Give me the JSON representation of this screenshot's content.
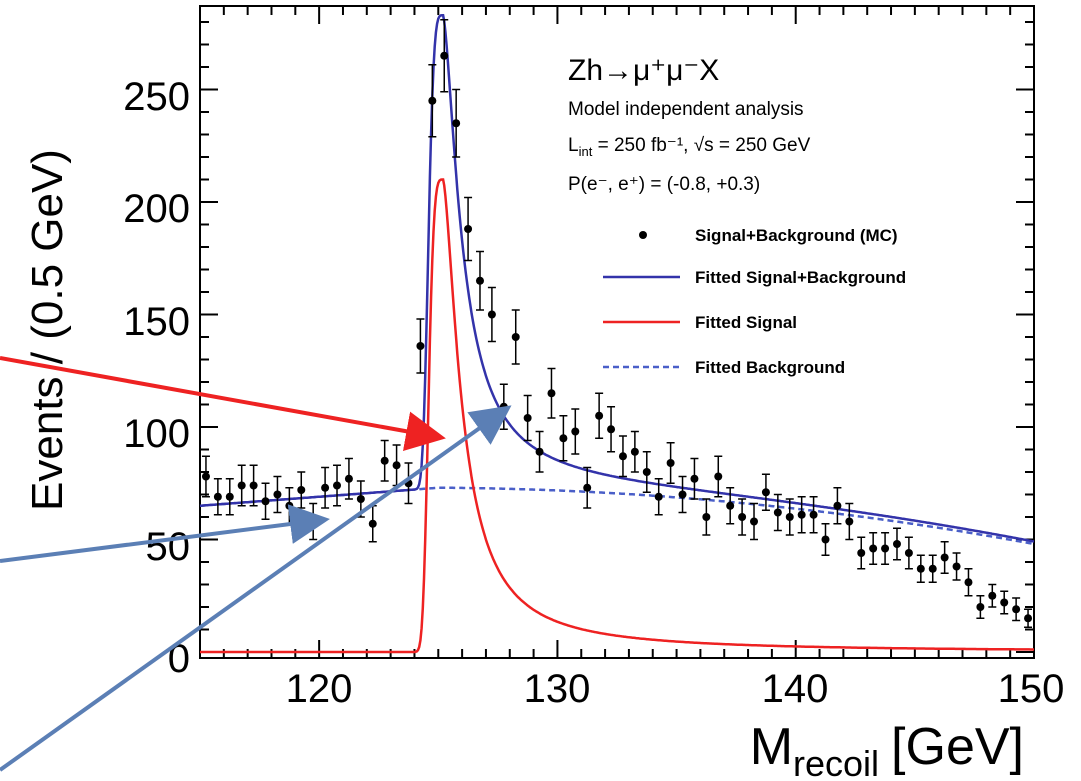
{
  "chart_data": {
    "type": "scatter",
    "xlabel": "M",
    "xlabel_sub": "recoil",
    "xlabel_unit": "[GeV]",
    "ylabel": "Events / (0.5 GeV)",
    "xlim": [
      115,
      150
    ],
    "ylim": [
      0,
      290
    ],
    "x_ticks": [
      "120",
      "130",
      "140",
      "150"
    ],
    "y_ticks": [
      "0",
      "50",
      "100",
      "150",
      "200",
      "250"
    ],
    "annotations": {
      "process": "Zh→μ⁺μ⁻X",
      "line1": "Model independent analysis",
      "line2": "L",
      "line2_sub": "int",
      "line2_rest": " = 250 fb⁻¹, √s = 250 GeV",
      "line3": "P(e⁻, e⁺) = (-0.8, +0.3)"
    },
    "legend": [
      {
        "label": "Signal+Background (MC)",
        "style": "marker",
        "color": "#000000"
      },
      {
        "label": "Fitted Signal+Background",
        "style": "solid",
        "color": "#3333aa"
      },
      {
        "label": "Fitted Signal",
        "style": "solid",
        "color": "#ee2222"
      },
      {
        "label": "Fitted Background",
        "style": "dashed",
        "color": "#4a5fc8"
      }
    ],
    "points": [
      {
        "x": 115.25,
        "y": 78,
        "e": 9
      },
      {
        "x": 115.75,
        "y": 69,
        "e": 8
      },
      {
        "x": 116.25,
        "y": 69,
        "e": 8
      },
      {
        "x": 116.75,
        "y": 74,
        "e": 9
      },
      {
        "x": 117.25,
        "y": 74,
        "e": 9
      },
      {
        "x": 117.75,
        "y": 67,
        "e": 8
      },
      {
        "x": 118.25,
        "y": 70,
        "e": 8
      },
      {
        "x": 118.75,
        "y": 65,
        "e": 8
      },
      {
        "x": 119.25,
        "y": 72,
        "e": 8
      },
      {
        "x": 119.75,
        "y": 58,
        "e": 8
      },
      {
        "x": 120.25,
        "y": 73,
        "e": 9
      },
      {
        "x": 120.75,
        "y": 74,
        "e": 9
      },
      {
        "x": 121.25,
        "y": 77,
        "e": 9
      },
      {
        "x": 121.75,
        "y": 68,
        "e": 8
      },
      {
        "x": 122.25,
        "y": 57,
        "e": 8
      },
      {
        "x": 122.75,
        "y": 85,
        "e": 9
      },
      {
        "x": 123.25,
        "y": 83,
        "e": 9
      },
      {
        "x": 123.75,
        "y": 75,
        "e": 9
      },
      {
        "x": 124.25,
        "y": 136,
        "e": 12
      },
      {
        "x": 124.75,
        "y": 245,
        "e": 16
      },
      {
        "x": 125.25,
        "y": 265,
        "e": 16
      },
      {
        "x": 125.75,
        "y": 235,
        "e": 15
      },
      {
        "x": 126.25,
        "y": 188,
        "e": 14
      },
      {
        "x": 126.75,
        "y": 165,
        "e": 13
      },
      {
        "x": 127.25,
        "y": 150,
        "e": 12
      },
      {
        "x": 127.75,
        "y": 109,
        "e": 10
      },
      {
        "x": 128.25,
        "y": 140,
        "e": 12
      },
      {
        "x": 128.75,
        "y": 104,
        "e": 10
      },
      {
        "x": 129.25,
        "y": 89,
        "e": 9
      },
      {
        "x": 129.75,
        "y": 115,
        "e": 11
      },
      {
        "x": 130.25,
        "y": 95,
        "e": 10
      },
      {
        "x": 130.75,
        "y": 98,
        "e": 10
      },
      {
        "x": 131.25,
        "y": 73,
        "e": 9
      },
      {
        "x": 131.75,
        "y": 105,
        "e": 10
      },
      {
        "x": 132.25,
        "y": 99,
        "e": 10
      },
      {
        "x": 132.75,
        "y": 87,
        "e": 9
      },
      {
        "x": 133.25,
        "y": 89,
        "e": 9
      },
      {
        "x": 133.75,
        "y": 80,
        "e": 9
      },
      {
        "x": 134.25,
        "y": 69,
        "e": 8
      },
      {
        "x": 134.75,
        "y": 84,
        "e": 9
      },
      {
        "x": 135.25,
        "y": 70,
        "e": 8
      },
      {
        "x": 135.75,
        "y": 77,
        "e": 9
      },
      {
        "x": 136.25,
        "y": 60,
        "e": 8
      },
      {
        "x": 136.75,
        "y": 78,
        "e": 9
      },
      {
        "x": 137.25,
        "y": 65,
        "e": 8
      },
      {
        "x": 137.75,
        "y": 60,
        "e": 8
      },
      {
        "x": 138.25,
        "y": 58,
        "e": 8
      },
      {
        "x": 138.75,
        "y": 71,
        "e": 8
      },
      {
        "x": 139.25,
        "y": 62,
        "e": 8
      },
      {
        "x": 139.75,
        "y": 60,
        "e": 8
      },
      {
        "x": 140.25,
        "y": 61,
        "e": 8
      },
      {
        "x": 140.75,
        "y": 61,
        "e": 8
      },
      {
        "x": 141.25,
        "y": 50,
        "e": 7
      },
      {
        "x": 141.75,
        "y": 65,
        "e": 8
      },
      {
        "x": 142.25,
        "y": 58,
        "e": 8
      },
      {
        "x": 142.75,
        "y": 44,
        "e": 7
      },
      {
        "x": 143.25,
        "y": 46,
        "e": 7
      },
      {
        "x": 143.75,
        "y": 46,
        "e": 7
      },
      {
        "x": 144.25,
        "y": 48,
        "e": 7
      },
      {
        "x": 144.75,
        "y": 44,
        "e": 7
      },
      {
        "x": 145.25,
        "y": 37,
        "e": 6
      },
      {
        "x": 145.75,
        "y": 37,
        "e": 6
      },
      {
        "x": 146.25,
        "y": 42,
        "e": 7
      },
      {
        "x": 146.75,
        "y": 38,
        "e": 6
      },
      {
        "x": 147.25,
        "y": 31,
        "e": 6
      },
      {
        "x": 147.75,
        "y": 20,
        "e": 5
      },
      {
        "x": 148.25,
        "y": 25,
        "e": 5
      },
      {
        "x": 148.75,
        "y": 22,
        "e": 5
      },
      {
        "x": 149.25,
        "y": 19,
        "e": 5
      },
      {
        "x": 149.75,
        "y": 15,
        "e": 4
      }
    ]
  }
}
